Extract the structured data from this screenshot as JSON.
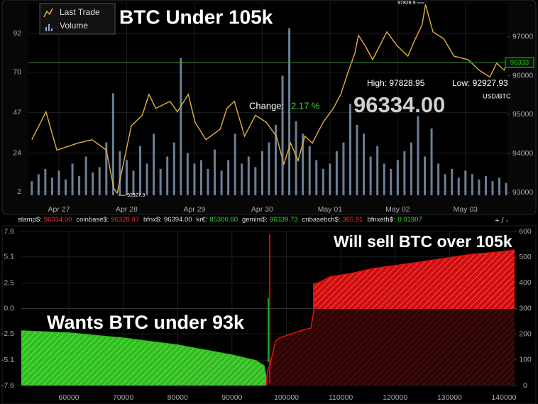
{
  "chart_data": [
    {
      "type": "line",
      "title": "BTC Under 105k",
      "xlim": [
        -0.45,
        6.62
      ],
      "xticks": [
        {
          "value": 0,
          "label": "Apr 27"
        },
        {
          "value": 1,
          "label": "Apr 28"
        },
        {
          "value": 2,
          "label": "Apr 29"
        },
        {
          "value": 3,
          "label": "Apr 30"
        },
        {
          "value": 4,
          "label": "May 01"
        },
        {
          "value": 5,
          "label": "May 02"
        },
        {
          "value": 6,
          "label": "May 03"
        }
      ],
      "ylim": [
        0,
        109
      ],
      "yticks": [
        2,
        24,
        47,
        70,
        92
      ],
      "y2lim": [
        92930,
        97850
      ],
      "y2ticks": [
        93000,
        94000,
        95000,
        96000,
        97000
      ],
      "grid": true,
      "legend": "top-left",
      "series": [
        {
          "name": "Last Trade",
          "color": "#e2b13c",
          "axis": "y2",
          "x": [
            -0.4,
            -0.19,
            -0.03,
            0.28,
            0.49,
            0.7,
            0.81,
            0.86,
            1.07,
            1.23,
            1.33,
            1.43,
            1.64,
            1.75,
            1.91,
            2.01,
            2.17,
            2.38,
            2.48,
            2.59,
            2.74,
            2.9,
            3.06,
            3.21,
            3.32,
            3.42,
            3.53,
            3.63,
            3.74,
            3.9,
            4.05,
            4.16,
            4.26,
            4.37,
            4.42,
            4.52,
            4.63,
            4.84,
            4.99,
            5.15,
            5.26,
            5.36,
            5.41,
            5.52,
            5.68,
            5.83,
            6.04,
            6.2,
            6.36,
            6.46,
            6.57,
            6.62
          ],
          "values": [
            94357,
            95071,
            94089,
            94267,
            94357,
            94089,
            93107,
            92981,
            94714,
            94982,
            95518,
            95160,
            95339,
            95071,
            95518,
            94803,
            94357,
            94625,
            95160,
            95339,
            94446,
            94982,
            94803,
            94446,
            93732,
            94267,
            93821,
            94446,
            94267,
            94803,
            95160,
            95518,
            96053,
            96589,
            97036,
            96768,
            96411,
            97125,
            96768,
            96500,
            96946,
            97304,
            97828,
            97125,
            96946,
            96500,
            96411,
            96143,
            95964,
            96321,
            96143,
            96333
          ]
        },
        {
          "name": "Volume",
          "color": "#8fa9c9",
          "type": "bar",
          "x": [
            -0.4,
            -0.3,
            -0.2,
            -0.1,
            0,
            0.1,
            0.2,
            0.3,
            0.4,
            0.5,
            0.6,
            0.7,
            0.8,
            0.9,
            1,
            1.1,
            1.2,
            1.3,
            1.4,
            1.5,
            1.6,
            1.7,
            1.8,
            1.9,
            2,
            2.1,
            2.2,
            2.3,
            2.4,
            2.5,
            2.6,
            2.7,
            2.8,
            2.9,
            3,
            3.1,
            3.2,
            3.3,
            3.4,
            3.5,
            3.6,
            3.7,
            3.8,
            3.9,
            4,
            4.1,
            4.2,
            4.3,
            4.4,
            4.5,
            4.6,
            4.7,
            4.8,
            4.9,
            5,
            5.1,
            5.2,
            5.3,
            5.4,
            5.5,
            5.6,
            5.7,
            5.8,
            5.9,
            6,
            6.1,
            6.2,
            6.3,
            6.4,
            6.5,
            6.6
          ],
          "values": [
            8,
            12,
            15,
            10,
            14,
            9,
            18,
            11,
            22,
            13,
            16,
            30,
            58,
            25,
            20,
            14,
            28,
            18,
            35,
            15,
            22,
            30,
            78,
            24,
            18,
            20,
            15,
            26,
            14,
            20,
            35,
            18,
            22,
            16,
            25,
            30,
            40,
            68,
            95,
            42,
            35,
            28,
            20,
            15,
            18,
            25,
            30,
            52,
            40,
            35,
            22,
            28,
            18,
            15,
            20,
            25,
            30,
            45,
            22,
            38,
            18,
            12,
            15,
            10,
            14,
            12,
            9,
            11,
            8,
            10,
            7
          ]
        }
      ],
      "last_price": 96333,
      "high_marker": {
        "value": 97828.9,
        "x": 5.41
      },
      "low_marker": {
        "value": 92927.9,
        "x": 0.86
      }
    },
    {
      "type": "area",
      "xlim": [
        51253,
        141958
      ],
      "xticks": [
        60000,
        70000,
        80000,
        90000,
        100000,
        110000,
        120000,
        130000,
        140000
      ],
      "ylim": [
        -7.6,
        7.6
      ],
      "yticks": [
        7.6,
        5.1,
        2.5,
        {
          "value": 0,
          "label": "0.0"
        },
        -2.5,
        -5.1,
        -7.6
      ],
      "y2lim": [
        0,
        600
      ],
      "y2ticks": [
        0,
        100,
        200,
        300,
        400,
        500,
        600
      ],
      "grid": true,
      "series": [
        {
          "color": "#2fbf1f",
          "axis": "y2",
          "x": [
            51253,
            60000,
            70000,
            80000,
            90000,
            94400,
            95900,
            96200,
            96330
          ],
          "values": [
            213,
            205,
            185,
            158,
            119,
            97,
            77,
            40,
            0
          ]
        },
        {
          "color": "#e01010",
          "axis": "y2",
          "x": [
            96334,
            96500,
            97000,
            98000,
            99000,
            101000,
            103000,
            104500,
            105000,
            105000,
            106000,
            108000,
            112000,
            116000,
            122000,
            128000,
            134000,
            140000,
            141958
          ],
          "values": [
            0,
            60,
            80,
            174,
            188,
            202,
            216,
            224,
            285,
            395,
            401,
            423,
            437,
            456,
            473,
            492,
            511,
            522,
            528
          ]
        }
      ]
    }
  ],
  "stats": {
    "high": "High: 97828.95",
    "low": "Low: 92927.93",
    "unit": "USD/BTC",
    "change_label": "Change:",
    "change": "2.17 %",
    "price": "96334.00"
  },
  "ticker": [
    {
      "label": "stamp$:",
      "value": "96334.00",
      "color": "#ff3030"
    },
    {
      "label": "coinbase$:",
      "value": "96328.97",
      "color": "#ff3030"
    },
    {
      "label": "bfnx$:",
      "value": "96394.00",
      "color": "#dddddd"
    },
    {
      "label": "kr€:",
      "value": "85300.60",
      "color": "#33dd33"
    },
    {
      "label": "gemini$:",
      "value": "96339.73",
      "color": "#33dd33"
    },
    {
      "label": "cnbasebch$:",
      "value": "365.91",
      "color": "#ff3030"
    },
    {
      "label": "bfnxeth฿:",
      "value": "0.01907",
      "color": "#33dd33"
    }
  ],
  "zoom": "+ / -",
  "overlays": {
    "sell": "Will sell BTC over 105k",
    "buy": "Wants BTC under 93k"
  }
}
